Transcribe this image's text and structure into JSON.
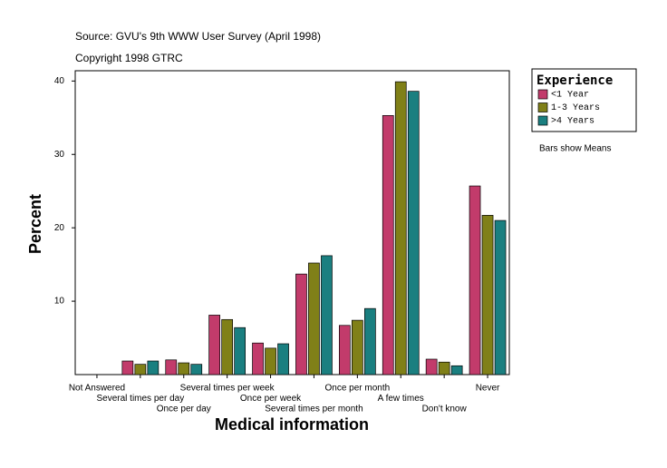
{
  "chart_data": {
    "type": "bar",
    "title": "Source: GVU's 9th WWW User Survey (April 1998)",
    "subtitle": "Copyright 1998 GTRC",
    "x_label": "Medical information",
    "y_label": "Percent",
    "legend_title": "Experience",
    "annotation": "Bars show Means",
    "categories": [
      "Not Answered",
      "Several times per day",
      "Once per day",
      "Several times per week",
      "Once per week",
      "Several times per month",
      "Once per month",
      "A few times",
      "Don't know",
      "Never"
    ],
    "series": [
      {
        "name": "<1 Year",
        "color": "#c23b6b",
        "values": [
          0,
          1.85,
          2.0,
          8.1,
          4.3,
          13.7,
          6.7,
          35.3,
          2.1,
          25.7
        ]
      },
      {
        "name": "1-3 Years",
        "color": "#808018",
        "values": [
          0,
          1.4,
          1.6,
          7.5,
          3.6,
          15.2,
          7.4,
          39.9,
          1.7,
          21.7
        ]
      },
      {
        "name": ">4 Years",
        "color": "#1a7f80",
        "values": [
          0,
          1.85,
          1.4,
          6.4,
          4.2,
          16.2,
          9.0,
          38.6,
          1.2,
          21.0
        ]
      }
    ],
    "ylim": [
      0,
      41.4
    ],
    "yticks": [
      10,
      20,
      30,
      40
    ],
    "legend": "right"
  }
}
